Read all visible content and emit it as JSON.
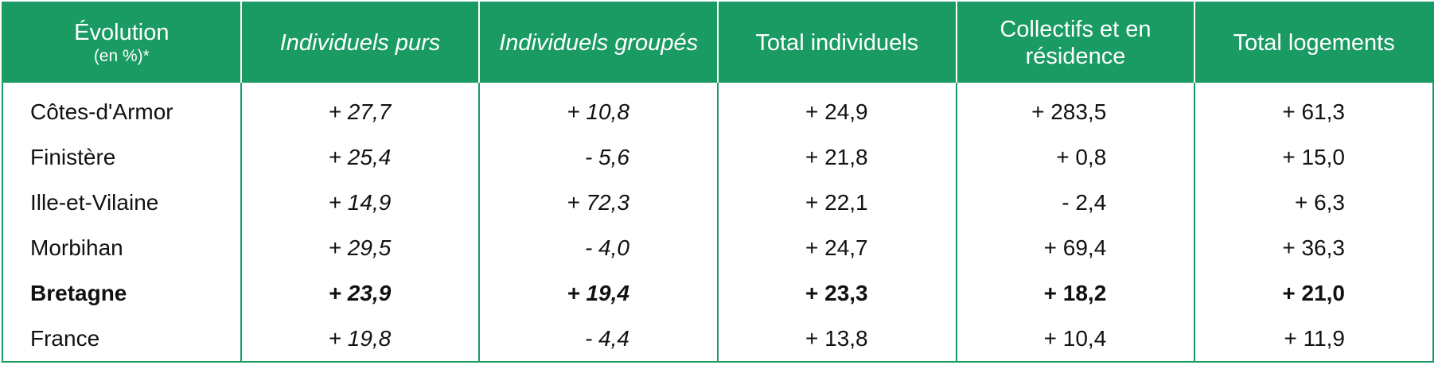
{
  "header": {
    "title": "Évolution",
    "subtitle": "(en %)*",
    "columns": [
      "Individuels purs",
      "Individuels groupés",
      "Total individuels",
      "Collectifs et en résidence",
      "Total logements"
    ]
  },
  "table": {
    "rows": [
      {
        "label": "Côtes-d'Armor",
        "values": [
          "+ 27,7",
          "+ 10,8",
          "+ 24,9",
          "+ 283,5",
          "+ 61,3"
        ]
      },
      {
        "label": "Finistère",
        "values": [
          "+ 25,4",
          "- 5,6",
          "+ 21,8",
          "+ 0,8",
          "+ 15,0"
        ]
      },
      {
        "label": "Ille-et-Vilaine",
        "values": [
          "+ 14,9",
          "+ 72,3",
          "+ 22,1",
          "- 2,4",
          "+ 6,3"
        ]
      },
      {
        "label": "Morbihan",
        "values": [
          "+ 29,5",
          "- 4,0",
          "+ 24,7",
          "+ 69,4",
          "+ 36,3"
        ]
      },
      {
        "label": "Bretagne",
        "values": [
          "+ 23,9",
          "+ 19,4",
          "+ 23,3",
          "+ 18,2",
          "+ 21,0"
        ]
      },
      {
        "label": "France",
        "values": [
          "+ 19,8",
          "- 4,4",
          "+ 13,8",
          "+ 10,4",
          "+ 11,9"
        ]
      }
    ]
  }
}
